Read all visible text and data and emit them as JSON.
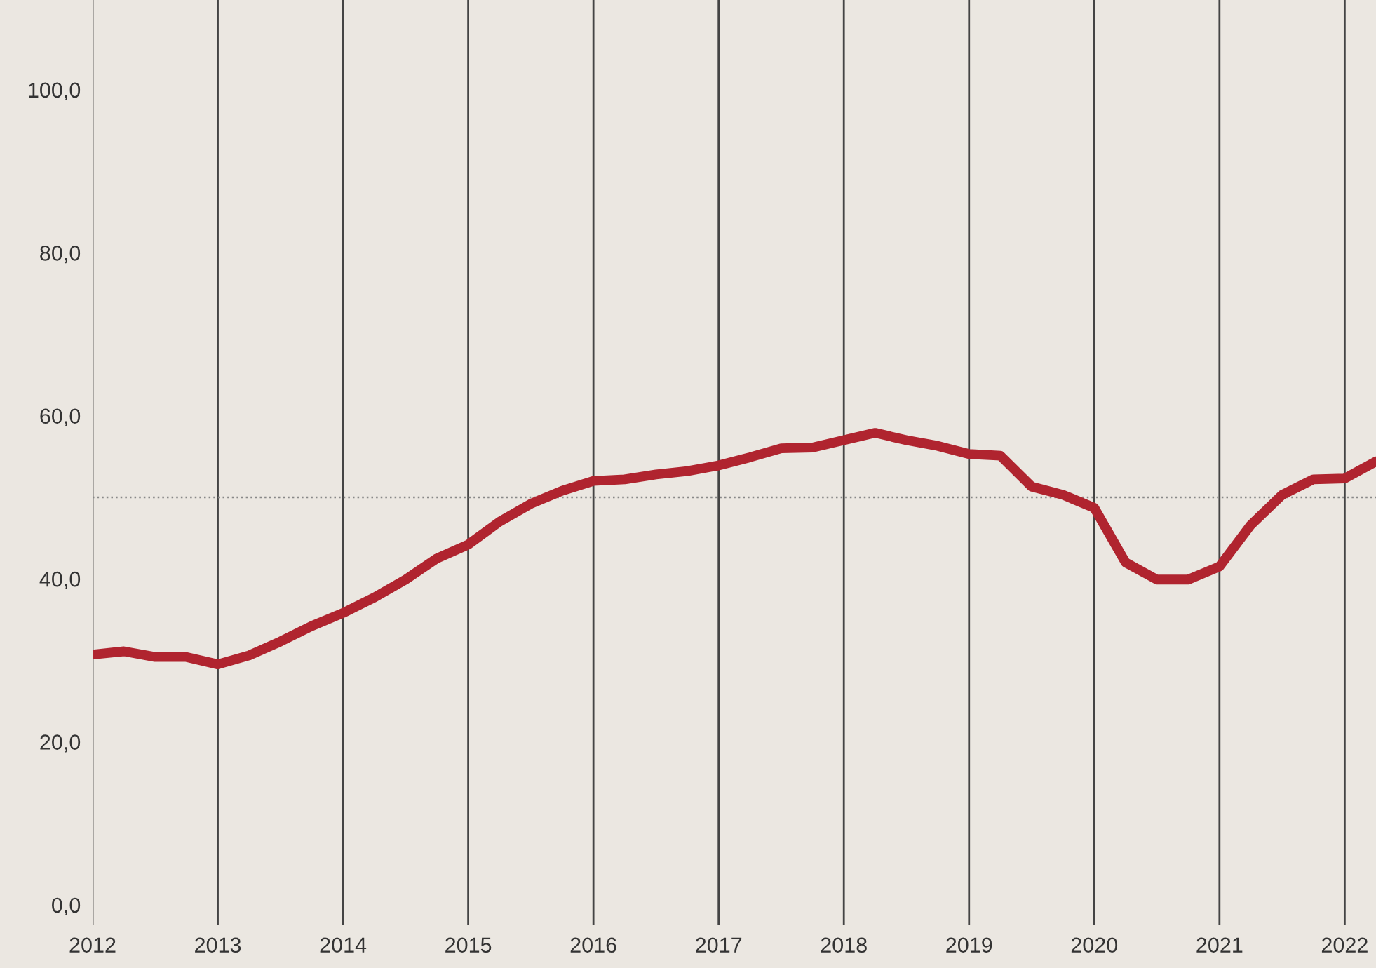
{
  "chart_data": {
    "type": "line",
    "x": [
      2012.0,
      2012.25,
      2012.5,
      2012.75,
      2013.0,
      2013.25,
      2013.5,
      2013.75,
      2014.0,
      2014.25,
      2014.5,
      2014.75,
      2015.0,
      2015.25,
      2015.5,
      2015.75,
      2016.0,
      2016.25,
      2016.5,
      2016.75,
      2017.0,
      2017.25,
      2017.5,
      2017.75,
      2018.0,
      2018.25,
      2018.5,
      2018.75,
      2019.0,
      2019.25,
      2019.5,
      2019.75,
      2020.0,
      2020.25,
      2020.5,
      2020.75,
      2021.0,
      2021.25,
      2021.5,
      2021.75,
      2022.0,
      2022.25
    ],
    "series": [
      {
        "color": "#b0242f",
        "values": [
          30.7,
          31.1,
          30.4,
          30.4,
          29.5,
          30.6,
          32.3,
          34.2,
          35.8,
          37.7,
          39.9,
          42.5,
          44.2,
          47.0,
          49.2,
          50.8,
          52.0,
          52.2,
          52.8,
          53.2,
          53.9,
          54.9,
          56.0,
          56.1,
          57.0,
          57.9,
          57.0,
          56.3,
          55.3,
          55.1,
          51.3,
          50.3,
          48.7,
          42.0,
          39.9,
          39.9,
          41.5,
          46.6,
          50.3,
          52.2,
          52.3,
          54.4
        ]
      }
    ],
    "xlim": [
      2012,
      2022.25
    ],
    "xticks": [
      2012,
      2013,
      2014,
      2015,
      2016,
      2017,
      2018,
      2019,
      2020,
      2021,
      2022
    ],
    "ylim": [
      -2.5,
      111
    ],
    "yticks": [
      {
        "value": 0,
        "label": "0,0"
      },
      {
        "value": 20,
        "label": "20,0"
      },
      {
        "value": 40,
        "label": "40,0"
      },
      {
        "value": 60,
        "label": "60,0"
      },
      {
        "value": 80,
        "label": "80,0"
      },
      {
        "value": 100,
        "label": "100,0"
      }
    ],
    "grid": "x",
    "marker": "none",
    "line_style": "solid",
    "ref_lines": [
      {
        "axis": "y",
        "value": 50,
        "color": "#888888",
        "line_style": "dotted"
      }
    ]
  }
}
